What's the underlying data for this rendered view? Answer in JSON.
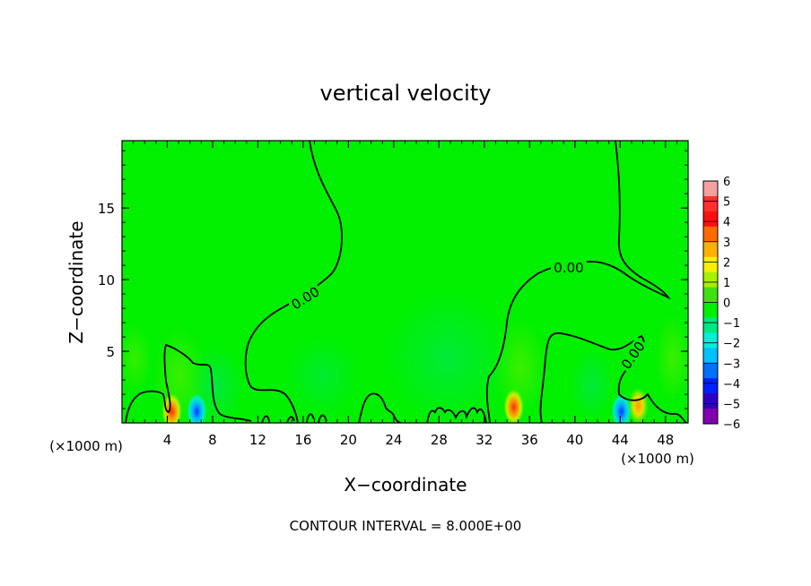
{
  "chart_data": {
    "type": "heatmap",
    "title": "vertical velocity",
    "xlabel": "X−coordinate",
    "ylabel": "Z−coordinate",
    "x_unit": "(×1000 m)",
    "xlim": [
      0,
      50
    ],
    "ylim": [
      0,
      19.7
    ],
    "x_ticks": [
      4,
      8,
      12,
      16,
      20,
      24,
      28,
      32,
      36,
      40,
      44,
      48
    ],
    "y_ticks": [
      5,
      10,
      15
    ],
    "footer": "CONTOUR INTERVAL = 8.000E+00",
    "contour_label": "0.00",
    "colorbar": {
      "ticks": [
        "6",
        "5",
        "4",
        "3",
        "2",
        "1",
        "0",
        "−1",
        "−2",
        "−3",
        "−4",
        "−5",
        "−6"
      ],
      "colors": [
        "#f4a0a0",
        "#ff3030",
        "#ff1010",
        "#ff6a00",
        "#ffb000",
        "#f8f000",
        "#a8f000",
        "#40e010",
        "#00f000",
        "#00e880",
        "#00f0d8",
        "#00c0ff",
        "#0070ff",
        "#0020ff",
        "#3000c0",
        "#8000b0"
      ]
    },
    "features": [
      {
        "x": 4.4,
        "z": 0.8,
        "w": 4,
        "kind": "updraft"
      },
      {
        "x": 6.6,
        "z": 0.8,
        "w": -3,
        "kind": "downdraft"
      },
      {
        "x": 34.6,
        "z": 1.1,
        "w": 4,
        "kind": "updraft"
      },
      {
        "x": 45.6,
        "z": 1.2,
        "w": 3,
        "kind": "updraft"
      },
      {
        "x": 44.1,
        "z": 0.8,
        "w": -2,
        "kind": "downdraft"
      }
    ]
  }
}
